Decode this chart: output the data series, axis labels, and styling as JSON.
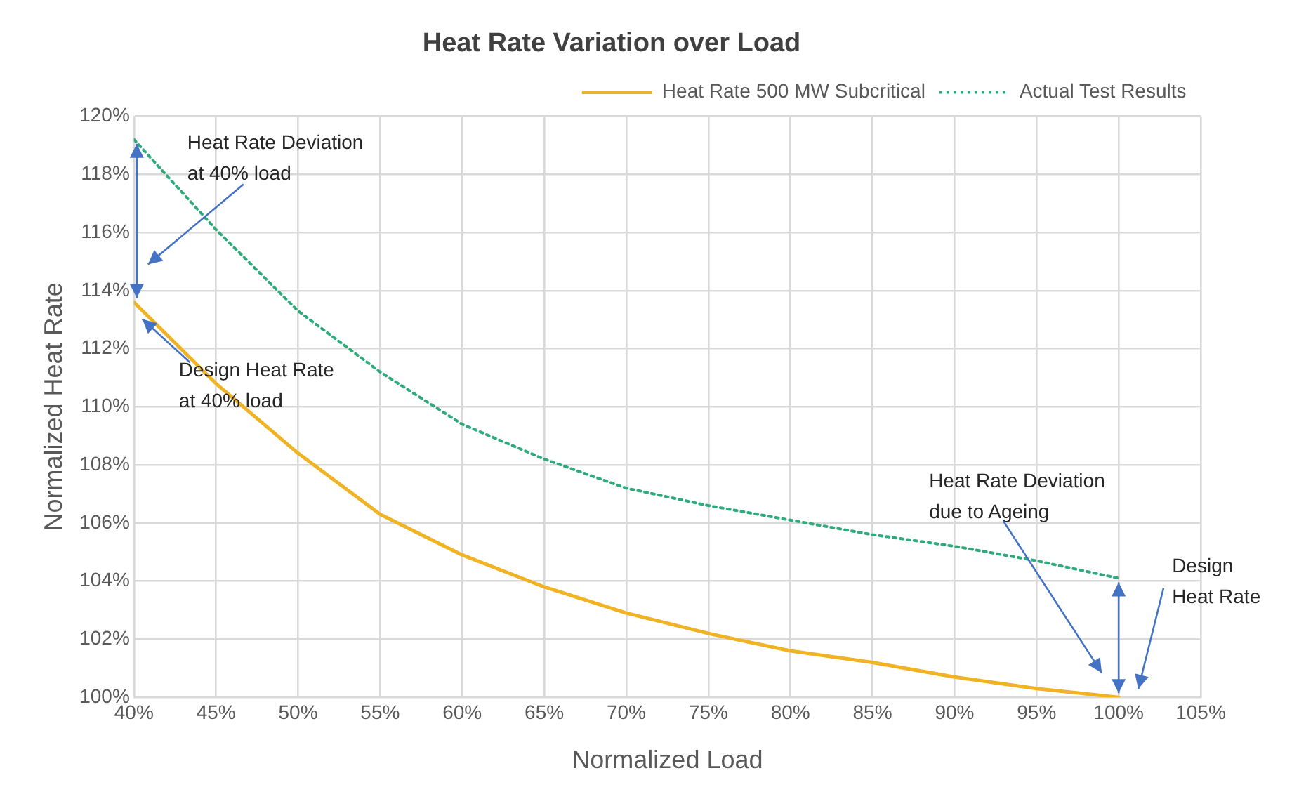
{
  "chart_data": {
    "type": "line",
    "title": "Heat Rate Variation over Load",
    "xlabel": "Normalized Load",
    "ylabel": "Normalized Heat Rate",
    "x": [
      40,
      45,
      50,
      55,
      60,
      65,
      70,
      75,
      80,
      85,
      90,
      95,
      100
    ],
    "series": [
      {
        "name": "Heat Rate 500 MW Subcritical",
        "color": "#f0b323",
        "line_style": "solid",
        "values": [
          113.6,
          110.8,
          108.4,
          106.3,
          104.9,
          103.8,
          102.9,
          102.2,
          101.6,
          101.2,
          100.7,
          100.3,
          100.0
        ]
      },
      {
        "name": "Actual Test Results",
        "color": "#2eab7a",
        "line_style": "dotted",
        "values": [
          119.2,
          116.1,
          113.3,
          111.2,
          109.4,
          108.2,
          107.2,
          106.6,
          106.1,
          105.6,
          105.2,
          104.7,
          104.1
        ]
      }
    ],
    "xlim": [
      40,
      105
    ],
    "xticks": [
      {
        "value": 40,
        "label": "40%"
      },
      {
        "value": 45,
        "label": "45%"
      },
      {
        "value": 50,
        "label": "50%"
      },
      {
        "value": 55,
        "label": "55%"
      },
      {
        "value": 60,
        "label": "60%"
      },
      {
        "value": 65,
        "label": "65%"
      },
      {
        "value": 70,
        "label": "70%"
      },
      {
        "value": 75,
        "label": "75%"
      },
      {
        "value": 80,
        "label": "80%"
      },
      {
        "value": 85,
        "label": "85%"
      },
      {
        "value": 90,
        "label": "90%"
      },
      {
        "value": 95,
        "label": "95%"
      },
      {
        "value": 100,
        "label": "100%"
      },
      {
        "value": 105,
        "label": "105%"
      }
    ],
    "ylim": [
      100,
      120
    ],
    "yticks": [
      {
        "value": 100,
        "label": "100%"
      },
      {
        "value": 102,
        "label": "102%"
      },
      {
        "value": 104,
        "label": "104%"
      },
      {
        "value": 106,
        "label": "106%"
      },
      {
        "value": 108,
        "label": "108%"
      },
      {
        "value": 110,
        "label": "110%"
      },
      {
        "value": 112,
        "label": "112%"
      },
      {
        "value": 114,
        "label": "114%"
      },
      {
        "value": 116,
        "label": "116%"
      },
      {
        "value": 118,
        "label": "118%"
      },
      {
        "value": 120,
        "label": "120%"
      }
    ],
    "grid": true,
    "legend": "top right",
    "marker": "none",
    "annotations": [
      "Heat Rate Deviation\nat 40% load",
      "Design Heat Rate\nat 40% load",
      "Heat Rate Deviation\ndue to Ageing",
      "Design\nHeat Rate"
    ]
  }
}
